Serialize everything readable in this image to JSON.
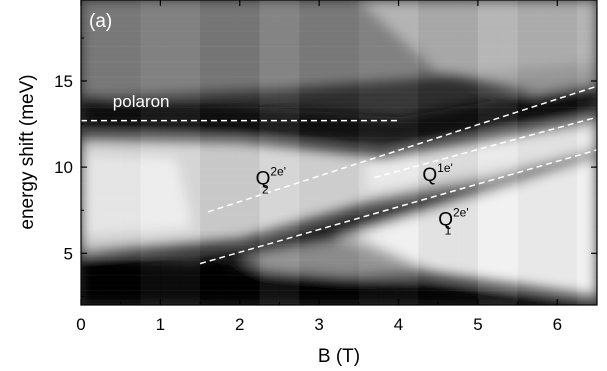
{
  "chart_data": {
    "type": "heatmap",
    "panel_label": "(a)",
    "xlabel": "B (T)",
    "ylabel": "energy shift (meV)",
    "xlim": [
      0,
      6.5
    ],
    "ylim": [
      2,
      19.7
    ],
    "xticks": [
      0,
      1,
      2,
      3,
      4,
      5,
      6
    ],
    "yticks": [
      5,
      10,
      15
    ],
    "colormap": "grayscale",
    "guide_lines": [
      {
        "name": "polaron-line",
        "x": [
          0,
          4.0
        ],
        "y": [
          12.7,
          12.7
        ]
      },
      {
        "name": "q2-2e-line",
        "x": [
          1.6,
          6.5
        ],
        "y": [
          7.4,
          14.7
        ]
      },
      {
        "name": "q1e-line",
        "x": [
          3.7,
          6.5
        ],
        "y": [
          9.4,
          12.9
        ]
      },
      {
        "name": "q1-2e-line",
        "x": [
          1.5,
          6.5
        ],
        "y": [
          4.4,
          11.0
        ]
      }
    ],
    "annotations": [
      {
        "name": "polaron-label",
        "text": "polaron",
        "x": 0.4,
        "y": 13.5
      },
      {
        "name": "q2-label",
        "base": "Q",
        "sub": "2",
        "sup": "2e",
        "prime": "'",
        "x": 2.2,
        "y": 9.0
      },
      {
        "name": "q1e-label",
        "base": "Q",
        "sup": "1e",
        "prime": "'",
        "x": 4.3,
        "y": 9.2
      },
      {
        "name": "q1-label",
        "base": "Q",
        "sub": "1",
        "sup": "2e",
        "prime": "'",
        "x": 4.5,
        "y": 6.6
      }
    ]
  }
}
